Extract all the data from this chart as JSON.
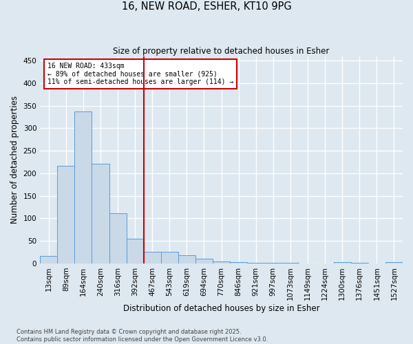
{
  "title1": "16, NEW ROAD, ESHER, KT10 9PG",
  "title2": "Size of property relative to detached houses in Esher",
  "xlabel": "Distribution of detached houses by size in Esher",
  "ylabel": "Number of detached properties",
  "bar_labels": [
    "13sqm",
    "89sqm",
    "164sqm",
    "240sqm",
    "316sqm",
    "392sqm",
    "467sqm",
    "543sqm",
    "619sqm",
    "694sqm",
    "770sqm",
    "846sqm",
    "921sqm",
    "997sqm",
    "1073sqm",
    "1149sqm",
    "1224sqm",
    "1300sqm",
    "1376sqm",
    "1451sqm",
    "1527sqm"
  ],
  "bar_values": [
    16,
    217,
    338,
    221,
    112,
    54,
    26,
    25,
    18,
    10,
    5,
    3,
    2,
    2,
    1,
    0,
    0,
    3,
    1,
    0,
    3
  ],
  "bar_color": "#c9d9e8",
  "bar_edge_color": "#5b9bd5",
  "vline_x": 5.5,
  "annotation_text_line1": "16 NEW ROAD: 433sqm",
  "annotation_text_line2": "← 89% of detached houses are smaller (925)",
  "annotation_text_line3": "11% of semi-detached houses are larger (114) →",
  "vline_color": "#cc0000",
  "annotation_box_color": "#ffffff",
  "annotation_box_edge": "#cc0000",
  "ylim": [
    0,
    460
  ],
  "yticks": [
    0,
    50,
    100,
    150,
    200,
    250,
    300,
    350,
    400,
    450
  ],
  "footer1": "Contains HM Land Registry data © Crown copyright and database right 2025.",
  "footer2": "Contains public sector information licensed under the Open Government Licence v3.0.",
  "bg_color": "#dde8f0",
  "grid_color": "#ffffff"
}
